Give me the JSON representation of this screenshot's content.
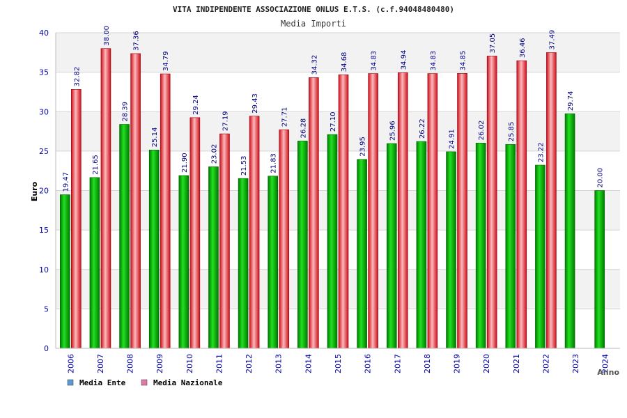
{
  "header": {
    "title": "VITA INDIPENDENTE ASSOCIAZIONE ONLUS E.T.S. (c.f.94048480480)",
    "subtitle": "Media Importi"
  },
  "chart_data": {
    "type": "bar",
    "title": "VITA INDIPENDENTE ASSOCIAZIONE ONLUS E.T.S. (c.f.94048480480)",
    "subtitle": "Media Importi",
    "xlabel": "Anno",
    "ylabel": "Euro",
    "ylim": [
      0,
      40
    ],
    "yticks": [
      "0",
      "5",
      "10",
      "15",
      "20",
      "25",
      "30",
      "35",
      "40"
    ],
    "grid": true,
    "legend_position": "bottom-left",
    "categories": [
      "2006",
      "2007",
      "2008",
      "2009",
      "2010",
      "2011",
      "2012",
      "2013",
      "2014",
      "2015",
      "2016",
      "2017",
      "2018",
      "2019",
      "2020",
      "2021",
      "2022",
      "2023",
      "2024"
    ],
    "series": [
      {
        "name": "Media Ente",
        "color": "#00bb00",
        "values": [
          19.47,
          21.65,
          28.39,
          25.14,
          21.9,
          23.02,
          21.53,
          21.83,
          26.28,
          27.1,
          23.95,
          25.96,
          26.22,
          24.91,
          26.02,
          25.85,
          23.22,
          29.74,
          20.0
        ],
        "labels": [
          "19.47",
          "21.65",
          "28.39",
          "25.14",
          "21.90",
          "23.02",
          "21.53",
          "21.83",
          "26.28",
          "27.10",
          "23.95",
          "25.96",
          "26.22",
          "24.91",
          "26.02",
          "25.85",
          "23.22",
          "29.74",
          "20.00"
        ]
      },
      {
        "name": "Media Nazionale",
        "color": "#e8202a",
        "values": [
          32.82,
          38.0,
          37.36,
          34.79,
          29.24,
          27.19,
          29.43,
          27.71,
          34.32,
          34.68,
          34.83,
          34.94,
          34.83,
          34.85,
          37.05,
          36.46,
          37.49,
          null,
          null
        ],
        "labels": [
          "32.82",
          "38.00",
          "37.36",
          "34.79",
          "29.24",
          "27.19",
          "29.43",
          "27.71",
          "34.32",
          "34.68",
          "34.83",
          "34.94",
          "34.83",
          "34.85",
          "37.05",
          "36.46",
          "37.49",
          "",
          ""
        ]
      }
    ]
  },
  "legend": [
    {
      "label": "Media Ente",
      "swatch": "#5b9bd5"
    },
    {
      "label": "Media Nazionale",
      "swatch": "#e377a8"
    }
  ],
  "colors": {
    "axis_text": "#0000aa",
    "value_text": "#000080",
    "title_text": "#222222",
    "band": "#f2f2f2"
  }
}
